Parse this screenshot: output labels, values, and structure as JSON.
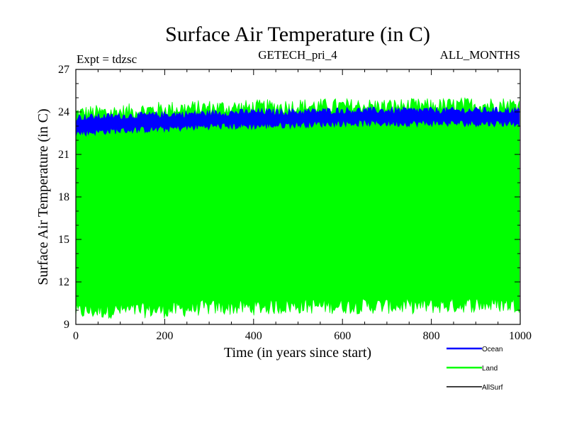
{
  "chart_data": {
    "type": "line",
    "title": "Surface Air Temperature (in C)",
    "subtitle_left": "Expt = tdzsc",
    "subtitle_center": "GETECH_pri_4",
    "subtitle_right": "ALL_MONTHS",
    "xlabel": "Time (in years since start)",
    "ylabel": "Surface Air Temperature (in C)",
    "xlim": [
      0,
      1000
    ],
    "ylim": [
      9,
      27
    ],
    "xticks": [
      0,
      200,
      400,
      600,
      800,
      1000
    ],
    "yticks": [
      9,
      12,
      15,
      18,
      21,
      24,
      27
    ],
    "xtick_labels": [
      "0",
      "200",
      "400",
      "600",
      "800",
      "1000"
    ],
    "ytick_labels": [
      "9",
      "12",
      "15",
      "18",
      "21",
      "24",
      "27"
    ],
    "series": [
      {
        "name": "Ocean",
        "color": "#0000ff",
        "description": "monthly oscillation band",
        "x": [
          0,
          100,
          200,
          300,
          400,
          500,
          600,
          700,
          800,
          900,
          1000
        ],
        "upper": [
          23.6,
          23.7,
          23.8,
          23.9,
          24.0,
          24.0,
          24.1,
          24.1,
          24.1,
          24.1,
          24.1
        ],
        "lower": [
          22.5,
          22.7,
          22.8,
          23.0,
          23.0,
          23.1,
          23.2,
          23.2,
          23.2,
          23.2,
          23.2
        ]
      },
      {
        "name": "Land",
        "color": "#00ff00",
        "description": "monthly oscillation band",
        "x": [
          0,
          100,
          200,
          300,
          400,
          500,
          600,
          700,
          800,
          900,
          1000
        ],
        "upper": [
          23.9,
          24.0,
          24.2,
          24.3,
          24.3,
          24.4,
          24.4,
          24.4,
          24.4,
          24.5,
          24.5
        ],
        "lower": [
          9.9,
          10.0,
          10.0,
          10.2,
          10.2,
          10.3,
          10.3,
          10.3,
          10.3,
          10.4,
          10.4
        ]
      },
      {
        "name": "AllSurf",
        "color": "#000000",
        "description": "not visible in plot area",
        "x": [],
        "upper": [],
        "lower": []
      }
    ],
    "legend_position": "bottom-right"
  }
}
